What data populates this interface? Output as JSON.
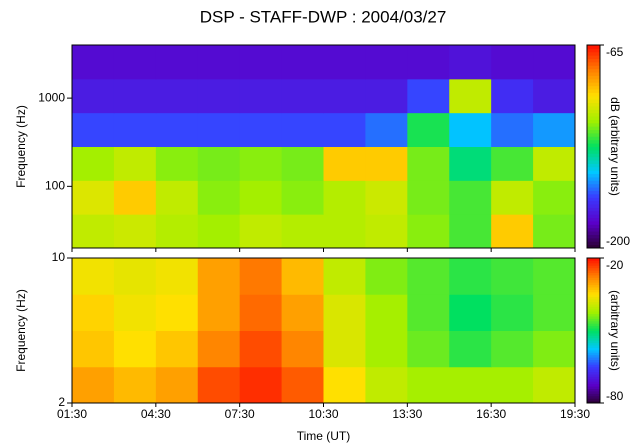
{
  "chart_data": [
    {
      "type": "heatmap",
      "title": "DSP - STAFF-DWP : 2004/03/27",
      "ylabel": "Frequency (Hz)",
      "xlim": [
        1.5,
        19.5
      ],
      "xticks": [
        1.5,
        4.5,
        7.5,
        10.5,
        13.5,
        16.5,
        19.5
      ],
      "ylim": [
        20,
        4000
      ],
      "log_y": true,
      "yticks": [
        100,
        1000
      ],
      "z": [
        [
          -110,
          -108,
          -112,
          -115,
          -110,
          -112,
          -112,
          -110,
          -118,
          -125,
          -95,
          -120
        ],
        [
          -105,
          -95,
          -110,
          -118,
          -115,
          -118,
          -112,
          -108,
          -120,
          -125,
          -110,
          -118
        ],
        [
          -115,
          -110,
          -118,
          -120,
          -118,
          -120,
          -95,
          -95,
          -120,
          -135,
          -125,
          -110
        ],
        [
          -165,
          -165,
          -165,
          -165,
          -165,
          -165,
          -165,
          -160,
          -130,
          -150,
          -160,
          -155
        ],
        [
          -175,
          -175,
          -175,
          -175,
          -175,
          -175,
          -175,
          -175,
          -165,
          -110,
          -170,
          -175
        ],
        [
          -180,
          -180,
          -180,
          -180,
          -180,
          -180,
          -180,
          -180,
          -180,
          -178,
          -180,
          -180
        ]
      ],
      "zlim": [
        -200,
        -65
      ],
      "zticks": [
        -200,
        -65
      ],
      "zlabel": "dB (arbitrary units)",
      "colorscale": [
        "#2a0030",
        "#5a00c8",
        "#3a3aff",
        "#00c8ff",
        "#00e060",
        "#a0f000",
        "#ffe000",
        "#ff8000",
        "#ff1000"
      ]
    },
    {
      "type": "heatmap",
      "xlabel": "Time (UT)",
      "ylabel": "Frequency (Hz)",
      "xlim": [
        1.5,
        19.5
      ],
      "xticks": [
        {
          "value": 1.5,
          "label": "01:30"
        },
        {
          "value": 4.5,
          "label": "04:30"
        },
        {
          "value": 7.5,
          "label": "07:30"
        },
        {
          "value": 10.5,
          "label": "10:30"
        },
        {
          "value": 13.5,
          "label": "13:30"
        },
        {
          "value": 16.5,
          "label": "16:30"
        },
        {
          "value": 19.5,
          "label": "19:30"
        }
      ],
      "ylim": [
        2,
        10
      ],
      "log_y": true,
      "yticks": [
        2,
        10
      ],
      "z": [
        [
          -30,
          -32,
          -30,
          -24,
          -22,
          -25,
          -35,
          -40,
          -42,
          -42,
          -42,
          -40
        ],
        [
          -33,
          -35,
          -33,
          -28,
          -24,
          -28,
          -38,
          -42,
          -45,
          -48,
          -46,
          -44
        ],
        [
          -34,
          -36,
          -35,
          -30,
          -26,
          -30,
          -38,
          -42,
          -46,
          -50,
          -48,
          -46
        ],
        [
          -36,
          -37,
          -36,
          -30,
          -27,
          -32,
          -40,
          -44,
          -46,
          -48,
          -47,
          -46
        ]
      ],
      "zlim": [
        -80,
        -20
      ],
      "zticks": [
        -80,
        -20
      ],
      "zlabel": "(arbitrary units)",
      "colorscale": [
        "#2a0030",
        "#5a00c8",
        "#3a3aff",
        "#00c8ff",
        "#00e060",
        "#a0f000",
        "#ffe000",
        "#ff8000",
        "#ff1000"
      ]
    }
  ]
}
